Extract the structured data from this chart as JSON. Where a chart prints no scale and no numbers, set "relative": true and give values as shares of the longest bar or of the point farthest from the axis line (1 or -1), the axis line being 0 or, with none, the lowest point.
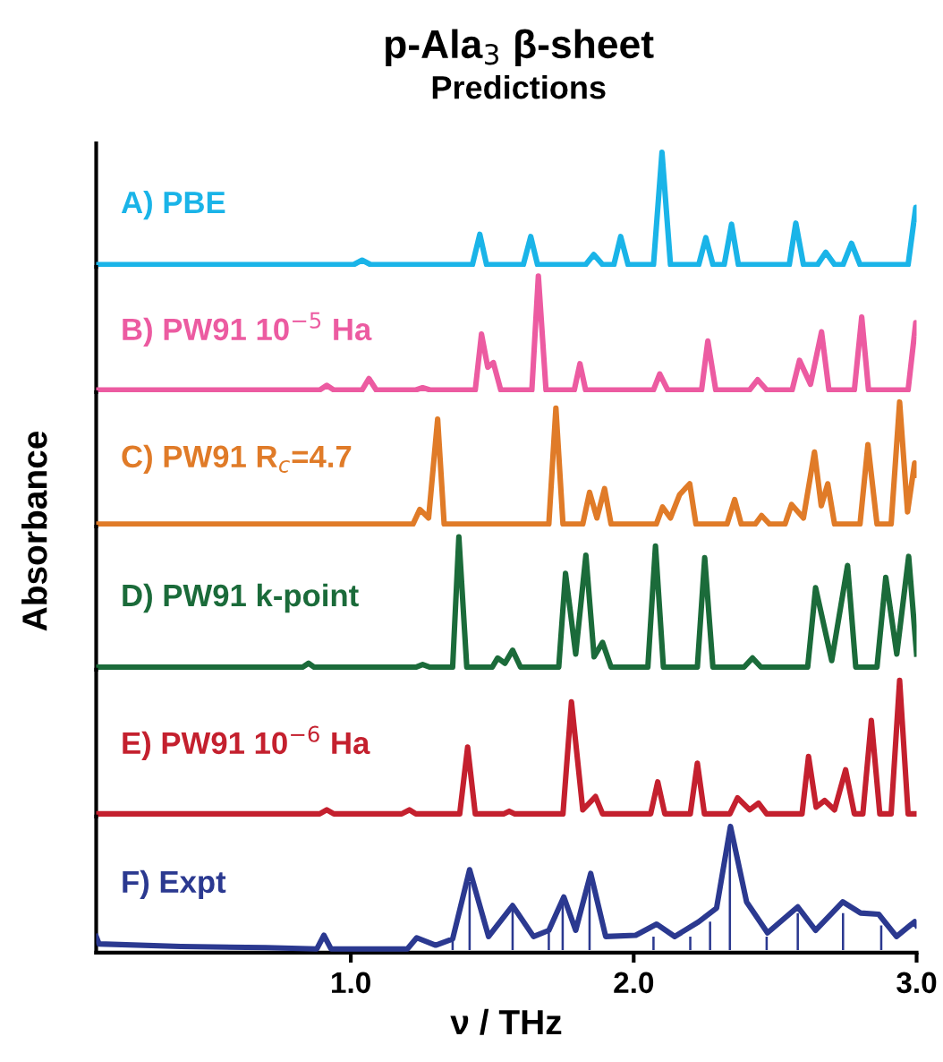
{
  "chart_data": [
    {
      "type": "line",
      "title": "p-Ala$_{3}$ β-sheet",
      "subtitle": "Predictions",
      "ylabel": "Absorbance",
      "relative": true,
      "xlim": [
        0.1,
        3.0
      ],
      "tick_labels": false,
      "series": [
        {
          "name": "A) PBE",
          "color": "#1ab4e8",
          "x": [
            0.1,
            1.01,
            1.04,
            1.07,
            1.43,
            1.456,
            1.48,
            1.61,
            1.636,
            1.66,
            1.83,
            1.859,
            1.89,
            1.93,
            1.954,
            1.98,
            2.07,
            2.1,
            2.13,
            2.23,
            2.255,
            2.28,
            2.32,
            2.346,
            2.37,
            2.55,
            2.573,
            2.6,
            2.65,
            2.679,
            2.71,
            2.74,
            2.77,
            2.8,
            2.97,
            2.997,
            3.0
          ],
          "values": [
            0,
            0,
            0.04,
            0,
            0,
            0.27,
            0,
            0,
            0.25,
            0,
            0,
            0.09,
            0,
            0,
            0.25,
            0,
            0,
            1.0,
            0,
            0,
            0.24,
            0,
            0,
            0.36,
            0,
            0,
            0.37,
            0,
            0,
            0.11,
            0,
            0,
            0.19,
            0,
            0,
            0.51,
            0.4
          ]
        }
      ]
    },
    {
      "type": "line",
      "relative": true,
      "xlim": [
        0.1,
        3.0
      ],
      "tick_labels": false,
      "series": [
        {
          "name": "B) PW91 10$^{−5}$ Ha",
          "color": "#ec5ba1",
          "x": [
            0.1,
            0.89,
            0.915,
            0.94,
            1.04,
            1.064,
            1.09,
            1.23,
            1.254,
            1.28,
            1.44,
            1.462,
            1.484,
            1.504,
            1.53,
            1.64,
            1.663,
            1.69,
            1.79,
            1.81,
            1.83,
            2.07,
            2.092,
            2.12,
            2.24,
            2.262,
            2.29,
            2.41,
            2.438,
            2.47,
            2.56,
            2.586,
            2.625,
            2.664,
            2.69,
            2.78,
            2.806,
            2.83,
            2.97,
            2.997,
            3.0
          ],
          "values": [
            0,
            0,
            0.04,
            0,
            0,
            0.1,
            0,
            0,
            0.02,
            0,
            0,
            0.49,
            0.2,
            0.24,
            0,
            0,
            1.0,
            0,
            0,
            0.23,
            0,
            0,
            0.14,
            0,
            0,
            0.43,
            0,
            0,
            0.09,
            0,
            0,
            0.26,
            0.05,
            0.51,
            0,
            0,
            0.64,
            0,
            0,
            0.59,
            0.5
          ]
        }
      ]
    },
    {
      "type": "line",
      "relative": true,
      "xlim": [
        0.1,
        3.0
      ],
      "tick_labels": false,
      "series": [
        {
          "name": "C) PW91 R$_{c}$=4.7",
          "color": "#e07b28",
          "x": [
            0.1,
            1.22,
            1.244,
            1.275,
            1.307,
            1.33,
            1.7,
            1.725,
            1.75,
            1.82,
            1.844,
            1.87,
            1.897,
            1.92,
            2.08,
            2.102,
            2.13,
            2.162,
            2.198,
            2.22,
            2.33,
            2.357,
            2.38,
            2.43,
            2.452,
            2.48,
            2.535,
            2.558,
            2.6,
            2.639,
            2.663,
            2.686,
            2.71,
            2.8,
            2.828,
            2.86,
            2.91,
            2.94,
            2.968,
            2.993,
            3.0
          ],
          "values": [
            0,
            0,
            0.12,
            0.05,
            0.86,
            0,
            0,
            0.95,
            0,
            0,
            0.26,
            0.05,
            0.29,
            0,
            0,
            0.14,
            0.05,
            0.24,
            0.33,
            0,
            0,
            0.2,
            0,
            0,
            0.07,
            0,
            0,
            0.16,
            0.05,
            0.59,
            0.15,
            0.33,
            0,
            0,
            0.65,
            0,
            0,
            1.0,
            0.1,
            0.5,
            0.4
          ]
        }
      ]
    },
    {
      "type": "line",
      "relative": true,
      "xlim": [
        0.1,
        3.0
      ],
      "tick_labels": false,
      "series": [
        {
          "name": "D) PW91 k-point",
          "color": "#1b6b3a",
          "x": [
            0.1,
            0.83,
            0.851,
            0.87,
            1.23,
            1.254,
            1.28,
            1.36,
            1.382,
            1.41,
            1.5,
            1.519,
            1.545,
            1.572,
            1.6,
            1.735,
            1.759,
            1.795,
            1.831,
            1.86,
            1.89,
            1.92,
            2.05,
            2.077,
            2.105,
            2.225,
            2.251,
            2.28,
            2.39,
            2.42,
            2.45,
            2.615,
            2.643,
            2.7,
            2.756,
            2.785,
            2.86,
            2.891,
            2.93,
            2.972,
            3.0
          ],
          "values": [
            0,
            0,
            0.03,
            0,
            0,
            0.02,
            0,
            0,
            1.0,
            0,
            0,
            0.07,
            0.03,
            0.13,
            0,
            0,
            0.72,
            0.1,
            0.86,
            0.08,
            0.19,
            0,
            0,
            0.93,
            0,
            0,
            0.84,
            0,
            0,
            0.07,
            0,
            0,
            0.61,
            0.05,
            0.78,
            0,
            0,
            0.69,
            0.1,
            0.85,
            0.1
          ]
        }
      ]
    },
    {
      "type": "line",
      "relative": true,
      "xlim": [
        0.1,
        3.0
      ],
      "tick_labels": false,
      "series": [
        {
          "name": "E) PW91 10$^{−6}$ Ha",
          "color": "#c4202e",
          "x": [
            0.1,
            0.89,
            0.915,
            0.94,
            1.18,
            1.207,
            1.23,
            1.385,
            1.413,
            1.44,
            1.54,
            1.56,
            1.58,
            1.75,
            1.78,
            1.82,
            1.865,
            1.89,
            2.06,
            2.085,
            2.11,
            2.2,
            2.225,
            2.25,
            2.34,
            2.367,
            2.41,
            2.441,
            2.47,
            2.595,
            2.618,
            2.645,
            2.675,
            2.71,
            2.749,
            2.78,
            2.81,
            2.84,
            2.87,
            2.91,
            2.94,
            2.97,
            3.0
          ],
          "values": [
            0,
            0,
            0.03,
            0,
            0,
            0.03,
            0,
            0,
            0.5,
            0,
            0,
            0.02,
            0,
            0,
            0.84,
            0.03,
            0.13,
            0,
            0,
            0.24,
            0,
            0,
            0.38,
            0,
            0,
            0.12,
            0.03,
            0.08,
            0,
            0,
            0.43,
            0.05,
            0.1,
            0.03,
            0.33,
            0,
            0,
            0.7,
            0,
            0,
            1.0,
            0,
            0
          ]
        }
      ]
    },
    {
      "type": "line",
      "xlabel": "ν / THz",
      "relative": true,
      "xlim": [
        0.1,
        3.0
      ],
      "xticks": [
        {
          "value": 1,
          "label": "1.0"
        },
        {
          "value": 2,
          "label": "2.0"
        },
        {
          "value": 3,
          "label": "3.0"
        }
      ],
      "tick_labels": "x",
      "series": [
        {
          "name": "F) Expt",
          "color": "#2b3990",
          "x": [
            0.1,
            0.11,
            0.4,
            0.7,
            0.88,
            0.905,
            0.93,
            1.2,
            1.233,
            1.3,
            1.36,
            1.42,
            1.487,
            1.572,
            1.646,
            1.7,
            1.753,
            1.795,
            1.848,
            1.901,
            2.007,
            2.081,
            2.145,
            2.23,
            2.293,
            2.342,
            2.399,
            2.473,
            2.58,
            2.643,
            2.739,
            2.802,
            2.866,
            2.929,
            2.993,
            3.0
          ],
          "values": [
            0.11,
            0.05,
            0.03,
            0.02,
            0.01,
            0.12,
            0.01,
            0.01,
            0.1,
            0.04,
            0.09,
            0.65,
            0.11,
            0.36,
            0.11,
            0.16,
            0.43,
            0.16,
            0.62,
            0.11,
            0.12,
            0.21,
            0.11,
            0.23,
            0.34,
            1.0,
            0.39,
            0.14,
            0.35,
            0.16,
            0.39,
            0.3,
            0.29,
            0.11,
            0.23,
            0.2
          ]
        },
        {
          "type": "bar",
          "color": "#2b3990",
          "x": [
            1.36,
            1.42,
            1.572,
            1.7,
            1.749,
            1.844,
            2.07,
            2.2,
            2.27,
            2.34,
            2.47,
            2.58,
            2.74,
            2.875
          ],
          "values": [
            0.08,
            0.55,
            0.34,
            0.14,
            0.41,
            0.52,
            0.11,
            0.11,
            0.23,
            0.88,
            0.11,
            0.3,
            0.3,
            0.2
          ]
        }
      ]
    }
  ]
}
